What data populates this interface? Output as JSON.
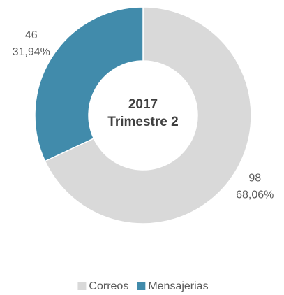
{
  "chart_data": {
    "type": "pie",
    "donut": true,
    "center_title": "2017",
    "center_subtitle": "Trimestre 2",
    "categories": [
      "Correos",
      "Mensajerias"
    ],
    "values": [
      98,
      46
    ],
    "percentages": [
      68.06,
      31.94
    ],
    "percentage_labels": [
      "68,06%",
      "31,94%"
    ],
    "colors": [
      "#d9d9d9",
      "#418bab"
    ],
    "legend": "bottom"
  }
}
